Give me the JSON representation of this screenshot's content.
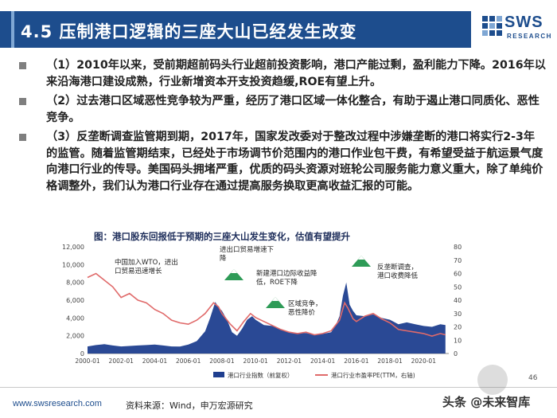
{
  "header": {
    "title": "4.5 压制港口逻辑的三座大山已经发生改变",
    "logo_text": "SWS",
    "logo_sub": "RESEARCH",
    "logo_icon": "sws-grid-icon"
  },
  "bullets": [
    {
      "text": "（1）2010年以来，受前期超前码头行业超前投资影响，港口产能过剩，盈利能力下降。2016年以来沿海港口建设成熟，行业新增资本开支投资趋缓,ROE有望上升。"
    },
    {
      "text": "（2）过去港口区域恶性竞争较为严重，经历了港口区域一体化整合，有助于遏止港口同质化、恶性竞争。"
    },
    {
      "text": "（3）反垄断调查监管期到期，2017年，国家发改委对于整改过程中涉嫌垄断的港口将实行2-3年的监管。随着监管期结束，已经处于市场调节价范围内的港口作业包干费，有希望受益于航运景气度向港口行业的传导。美国码头拥堵严重，优质的码头资源对班轮公司服务能力意义重大，除了单纯价格调整外，我们认为港口行业存在通过提高服务换取更高收益汇报的可能。"
    }
  ],
  "chart_title": "图：港口股东回报低于预期的三座大山发生变化，估值有望提升",
  "chart_data": {
    "type": "area",
    "x_ticks": [
      "2000-01",
      "2002-01",
      "2004-01",
      "2006-01",
      "2008-01",
      "2010-01",
      "2012-01",
      "2014-01",
      "2016-01",
      "2018-01",
      "2020-01"
    ],
    "y_left_ticks": [
      "0",
      "2,000",
      "4,000",
      "6,000",
      "8,000",
      "10,000",
      "12,000"
    ],
    "y_right_ticks": [
      "0",
      "10",
      "20",
      "30",
      "40",
      "50",
      "60",
      "70",
      "80"
    ],
    "ylim_left": [
      0,
      12000
    ],
    "ylim_right": [
      0,
      80
    ],
    "series": [
      {
        "name": "港口行业指数（前复权）",
        "color": "#1f3f8f",
        "axis": "left",
        "x": [
          2000.0,
          2000.5,
          2001.0,
          2001.5,
          2002.0,
          2002.5,
          2003.0,
          2003.5,
          2004.0,
          2004.5,
          2005.0,
          2005.5,
          2006.0,
          2006.5,
          2007.0,
          2007.3,
          2007.6,
          2007.8,
          2008.0,
          2008.3,
          2008.6,
          2008.9,
          2009.2,
          2009.5,
          2009.8,
          2010.0,
          2010.5,
          2011.0,
          2011.5,
          2012.0,
          2012.5,
          2013.0,
          2013.5,
          2014.0,
          2014.5,
          2014.8,
          2015.0,
          2015.2,
          2015.4,
          2015.6,
          2015.8,
          2016.0,
          2016.5,
          2017.0,
          2017.5,
          2018.0,
          2018.5,
          2019.0,
          2019.5,
          2020.0,
          2020.5,
          2021.0,
          2021.3
        ],
        "y": [
          800,
          950,
          1050,
          900,
          800,
          850,
          900,
          950,
          1000,
          900,
          800,
          780,
          1000,
          1400,
          2500,
          4000,
          5800,
          5200,
          4800,
          3800,
          2400,
          2000,
          2800,
          3800,
          4200,
          3800,
          3200,
          3100,
          2700,
          2400,
          2300,
          2300,
          2100,
          2200,
          2400,
          3300,
          4200,
          6500,
          8000,
          5500,
          4800,
          4300,
          4200,
          4400,
          4000,
          3800,
          3300,
          3500,
          3300,
          3100,
          3000,
          3300,
          3200
        ]
      },
      {
        "name": "港口行业市盈率PE(TTM，右轴)",
        "color": "#e06a6a",
        "axis": "right",
        "x": [
          2000.0,
          2000.5,
          2001.0,
          2001.5,
          2002.0,
          2002.5,
          2003.0,
          2003.5,
          2004.0,
          2004.5,
          2005.0,
          2005.5,
          2006.0,
          2006.5,
          2007.0,
          2007.5,
          2007.8,
          2008.0,
          2008.5,
          2008.9,
          2009.3,
          2009.7,
          2010.0,
          2010.5,
          2011.0,
          2011.5,
          2012.0,
          2012.5,
          2013.0,
          2013.5,
          2014.0,
          2014.5,
          2015.0,
          2015.3,
          2015.5,
          2015.8,
          2016.0,
          2016.5,
          2017.0,
          2017.5,
          2018.0,
          2018.5,
          2019.0,
          2019.5,
          2020.0,
          2020.5,
          2021.0,
          2021.3
        ],
        "y": [
          57,
          60,
          55,
          50,
          42,
          45,
          40,
          38,
          33,
          30,
          25,
          23,
          22,
          25,
          30,
          38,
          35,
          30,
          22,
          17,
          24,
          30,
          27,
          24,
          21,
          18,
          16,
          15,
          16,
          14,
          15,
          17,
          25,
          38,
          34,
          26,
          24,
          28,
          30,
          26,
          23,
          18,
          17,
          16,
          15,
          13,
          15,
          14
        ]
      }
    ],
    "annotations": [
      {
        "text": "中国加入WTO，进出口贸易迅速增长",
        "lines": [
          "中国加入WTO，进出",
          "口贸易迅速增长"
        ]
      },
      {
        "text": "进出口贸易增速下降",
        "lines": [
          "进出口贸易增速下",
          "降"
        ]
      },
      {
        "text": "新建港口边际收益降低，ROE下降",
        "lines": [
          "新建港口边际收益降",
          "低，ROE下降"
        ]
      },
      {
        "text": "区域竞争，恶性降价",
        "lines": [
          "区域竞争，",
          "恶性降价"
        ]
      },
      {
        "text": "反垄断调查，港口收费降低",
        "lines": [
          "反垄断调查，",
          "港口收费降低"
        ]
      }
    ],
    "legend_position": "bottom"
  },
  "footer": {
    "url": "www.swsresearch.com",
    "source": "资料来源：Wind，申万宏源研究",
    "page": "46",
    "watermark": "头条 @未来智库"
  },
  "colors": {
    "title_bar": "#1d4d8d",
    "index_fill": "#1f3f8f",
    "pe_line": "#e06a6a",
    "mountain": "#2e9b57"
  }
}
